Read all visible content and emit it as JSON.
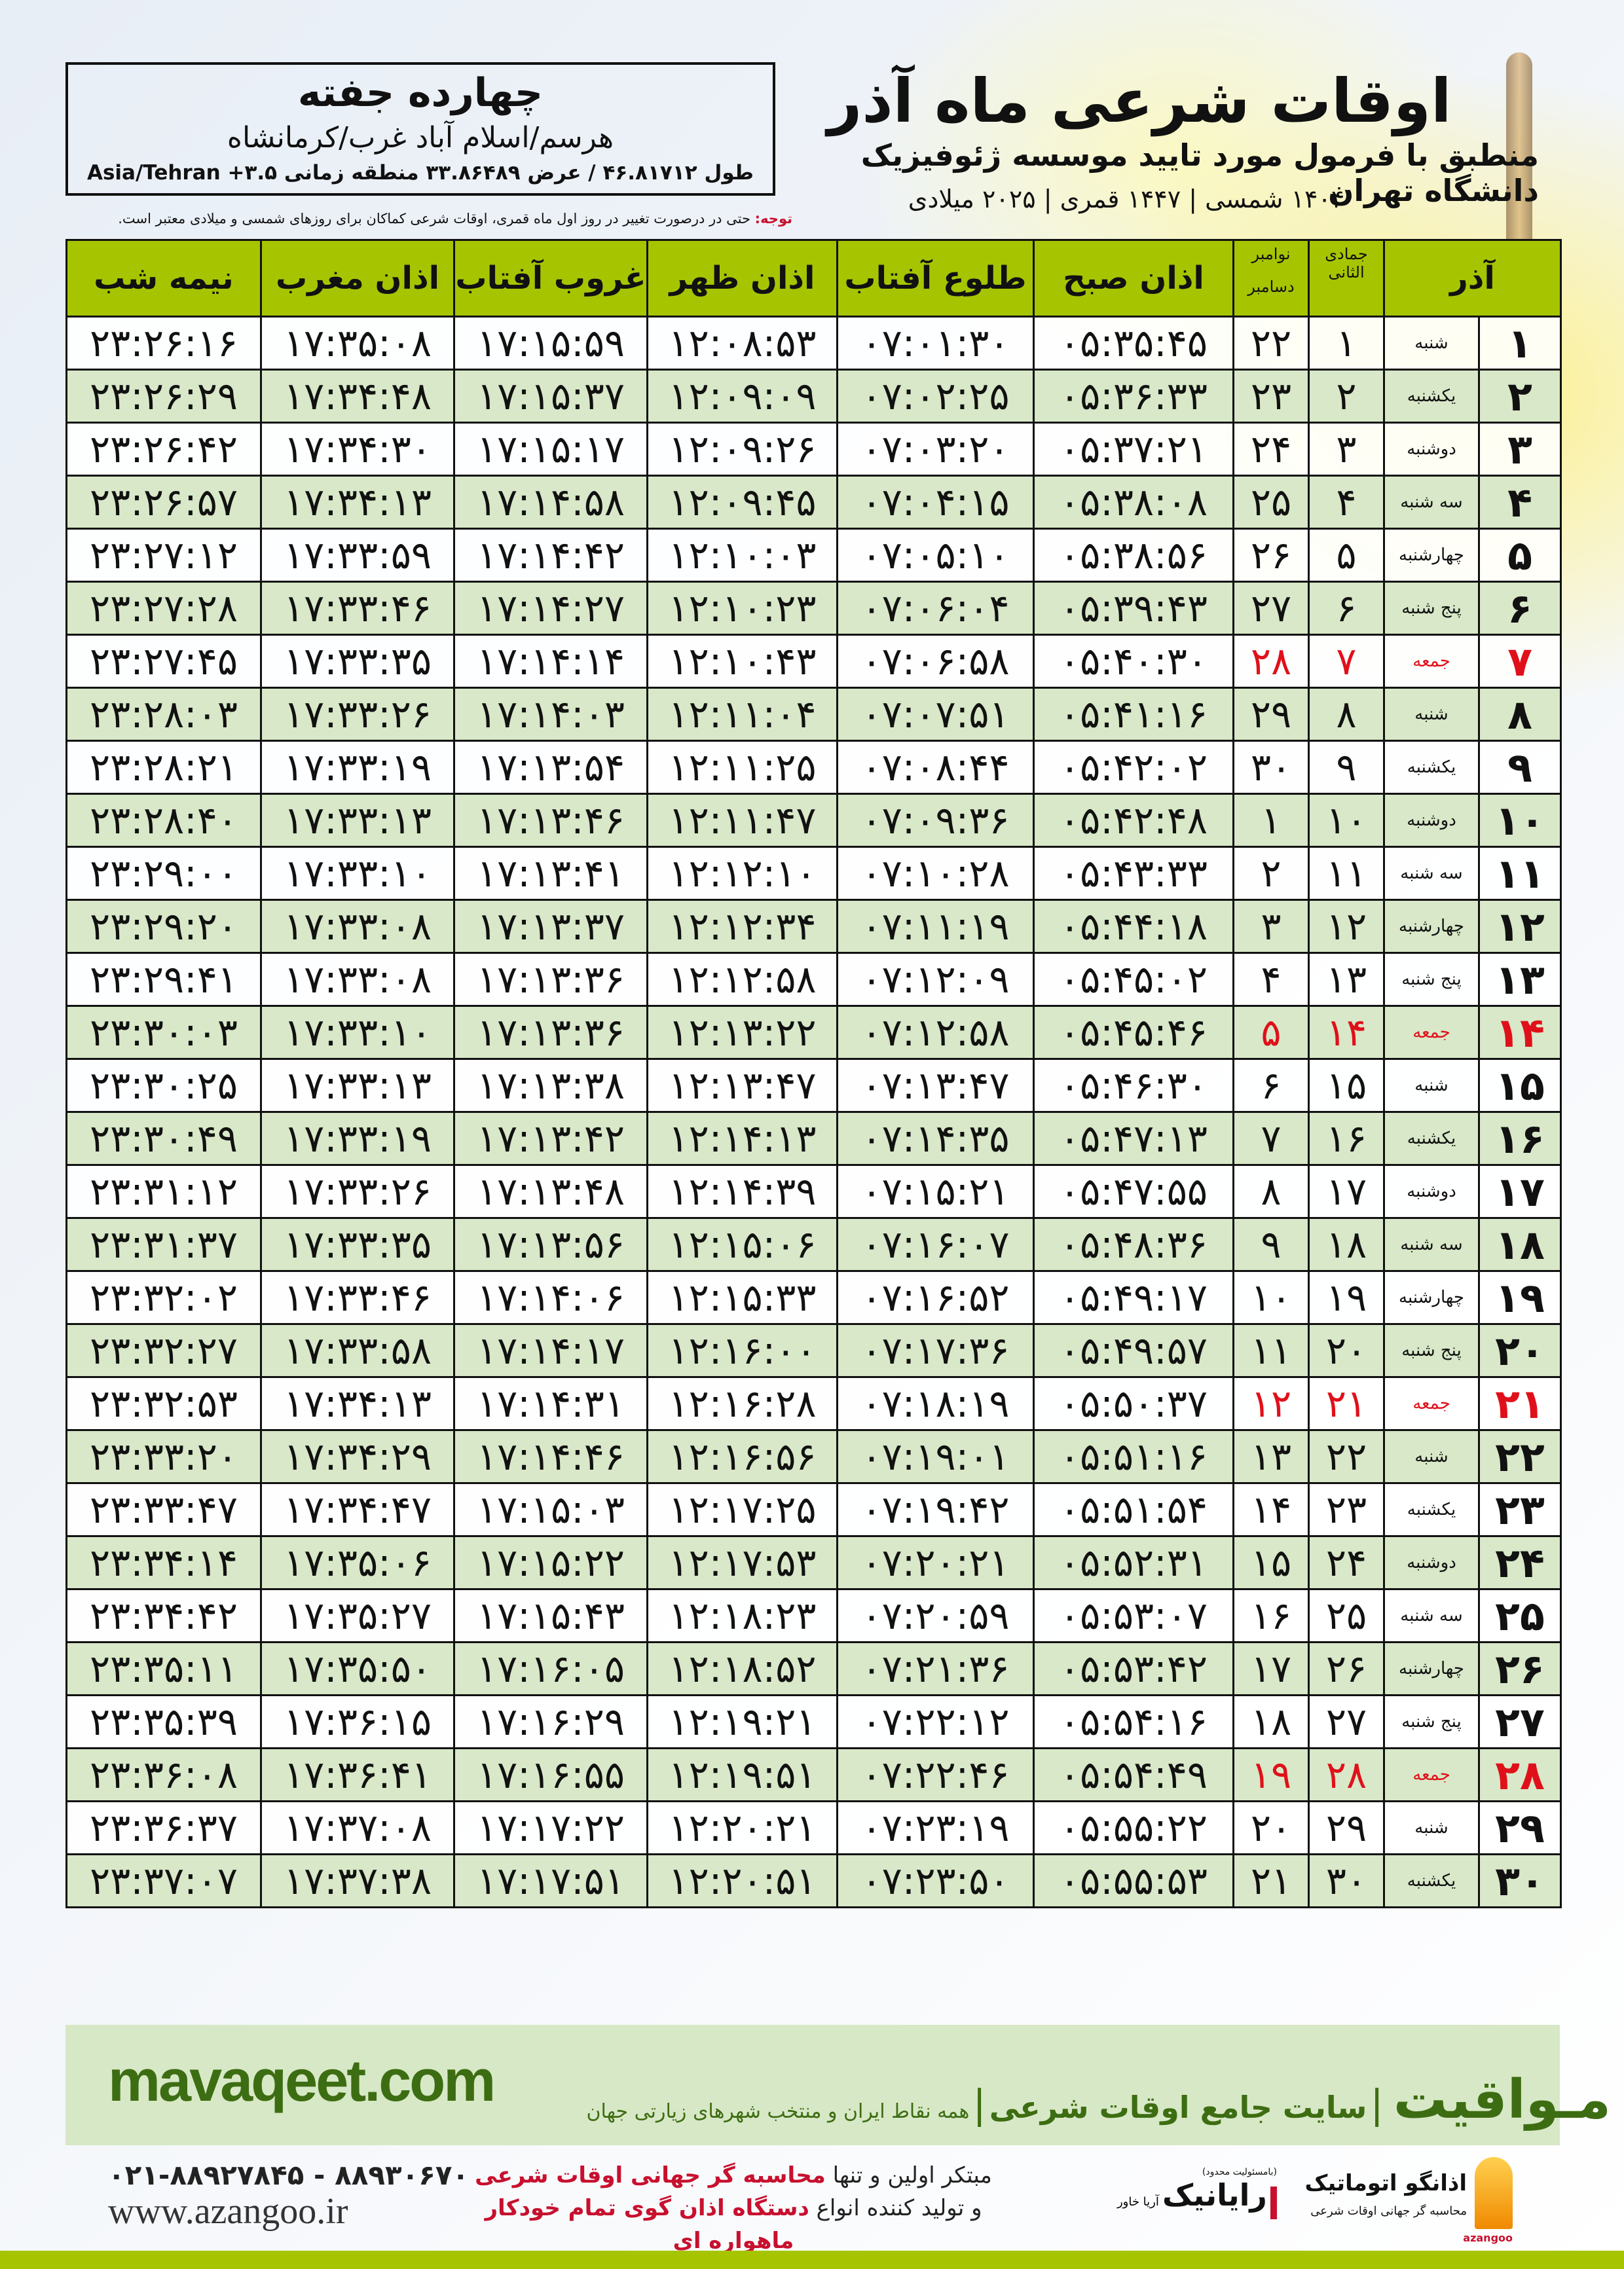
{
  "header": {
    "title": "اوقات شرعی ماه آذر",
    "subtitle": "منطبق با فرمول مورد تایید موسسه ژئوفیزیک دانشگاه تهران",
    "years": "۱۴۰۴ شمسی | ۱۴۴۷ قمری | ۲۰۲۵ میلادی"
  },
  "location": {
    "name": "چهارده جفته",
    "region": "هرسم/اسلام آباد غرب/کرمانشاه",
    "coords": "طول ۴۶.۸۱۷۱۲ / عرض ۳۳.۸۶۴۸۹ منطقه زمانی ۳.۵+ Asia/Tehran"
  },
  "note": {
    "label": "توجه:",
    "text": " حتی در درصورت تغییر در روز اول ماه قمری، اوقات شرعی کماکان برای روزهای شمسی و میلادی معتبر است."
  },
  "colors": {
    "header_green": "#a6c500",
    "row_green": "#d8e8c8",
    "holiday_red": "#e0101a",
    "brand_green": "#3d6d12"
  },
  "table": {
    "headers": {
      "month": "آذر",
      "hijri": "جمادی الثانی",
      "greg_top": "نوامبر",
      "greg_bottom": "دسامبر",
      "sobh": "اذان صبح",
      "tolu": "طلوع آفتاب",
      "zohr": "اذان ظهر",
      "ghorub": "غروب آفتاب",
      "maghreb": "اذان مغرب",
      "nimeh": "نیمه شب"
    },
    "rows": [
      {
        "day": "۱",
        "weekday": "شنبه",
        "hijri": "۱",
        "greg": "۲۲",
        "sobh": "۰۵:۳۵:۴۵",
        "tolu": "۰۷:۰۱:۳۰",
        "zohr": "۱۲:۰۸:۵۳",
        "ghorub": "۱۷:۱۵:۵۹",
        "maghreb": "۱۷:۳۵:۰۸",
        "nimeh": "۲۳:۲۶:۱۶",
        "holiday": false
      },
      {
        "day": "۲",
        "weekday": "یکشنبه",
        "hijri": "۲",
        "greg": "۲۳",
        "sobh": "۰۵:۳۶:۳۳",
        "tolu": "۰۷:۰۲:۲۵",
        "zohr": "۱۲:۰۹:۰۹",
        "ghorub": "۱۷:۱۵:۳۷",
        "maghreb": "۱۷:۳۴:۴۸",
        "nimeh": "۲۳:۲۶:۲۹",
        "holiday": false
      },
      {
        "day": "۳",
        "weekday": "دوشنبه",
        "hijri": "۳",
        "greg": "۲۴",
        "sobh": "۰۵:۳۷:۲۱",
        "tolu": "۰۷:۰۳:۲۰",
        "zohr": "۱۲:۰۹:۲۶",
        "ghorub": "۱۷:۱۵:۱۷",
        "maghreb": "۱۷:۳۴:۳۰",
        "nimeh": "۲۳:۲۶:۴۲",
        "holiday": false
      },
      {
        "day": "۴",
        "weekday": "سه شنبه",
        "hijri": "۴",
        "greg": "۲۵",
        "sobh": "۰۵:۳۸:۰۸",
        "tolu": "۰۷:۰۴:۱۵",
        "zohr": "۱۲:۰۹:۴۵",
        "ghorub": "۱۷:۱۴:۵۸",
        "maghreb": "۱۷:۳۴:۱۳",
        "nimeh": "۲۳:۲۶:۵۷",
        "holiday": false
      },
      {
        "day": "۵",
        "weekday": "چهارشنبه",
        "hijri": "۵",
        "greg": "۲۶",
        "sobh": "۰۵:۳۸:۵۶",
        "tolu": "۰۷:۰۵:۱۰",
        "zohr": "۱۲:۱۰:۰۳",
        "ghorub": "۱۷:۱۴:۴۲",
        "maghreb": "۱۷:۳۳:۵۹",
        "nimeh": "۲۳:۲۷:۱۲",
        "holiday": false
      },
      {
        "day": "۶",
        "weekday": "پنج شنبه",
        "hijri": "۶",
        "greg": "۲۷",
        "sobh": "۰۵:۳۹:۴۳",
        "tolu": "۰۷:۰۶:۰۴",
        "zohr": "۱۲:۱۰:۲۳",
        "ghorub": "۱۷:۱۴:۲۷",
        "maghreb": "۱۷:۳۳:۴۶",
        "nimeh": "۲۳:۲۷:۲۸",
        "holiday": false
      },
      {
        "day": "۷",
        "weekday": "جمعه",
        "hijri": "۷",
        "greg": "۲۸",
        "sobh": "۰۵:۴۰:۳۰",
        "tolu": "۰۷:۰۶:۵۸",
        "zohr": "۱۲:۱۰:۴۳",
        "ghorub": "۱۷:۱۴:۱۴",
        "maghreb": "۱۷:۳۳:۳۵",
        "nimeh": "۲۳:۲۷:۴۵",
        "holiday": true
      },
      {
        "day": "۸",
        "weekday": "شنبه",
        "hijri": "۸",
        "greg": "۲۹",
        "sobh": "۰۵:۴۱:۱۶",
        "tolu": "۰۷:۰۷:۵۱",
        "zohr": "۱۲:۱۱:۰۴",
        "ghorub": "۱۷:۱۴:۰۳",
        "maghreb": "۱۷:۳۳:۲۶",
        "nimeh": "۲۳:۲۸:۰۳",
        "holiday": false
      },
      {
        "day": "۹",
        "weekday": "یکشنبه",
        "hijri": "۹",
        "greg": "۳۰",
        "sobh": "۰۵:۴۲:۰۲",
        "tolu": "۰۷:۰۸:۴۴",
        "zohr": "۱۲:۱۱:۲۵",
        "ghorub": "۱۷:۱۳:۵۴",
        "maghreb": "۱۷:۳۳:۱۹",
        "nimeh": "۲۳:۲۸:۲۱",
        "holiday": false
      },
      {
        "day": "۱۰",
        "weekday": "دوشنبه",
        "hijri": "۱۰",
        "greg": "۱",
        "sobh": "۰۵:۴۲:۴۸",
        "tolu": "۰۷:۰۹:۳۶",
        "zohr": "۱۲:۱۱:۴۷",
        "ghorub": "۱۷:۱۳:۴۶",
        "maghreb": "۱۷:۳۳:۱۳",
        "nimeh": "۲۳:۲۸:۴۰",
        "holiday": false
      },
      {
        "day": "۱۱",
        "weekday": "سه شنبه",
        "hijri": "۱۱",
        "greg": "۲",
        "sobh": "۰۵:۴۳:۳۳",
        "tolu": "۰۷:۱۰:۲۸",
        "zohr": "۱۲:۱۲:۱۰",
        "ghorub": "۱۷:۱۳:۴۱",
        "maghreb": "۱۷:۳۳:۱۰",
        "nimeh": "۲۳:۲۹:۰۰",
        "holiday": false
      },
      {
        "day": "۱۲",
        "weekday": "چهارشنبه",
        "hijri": "۱۲",
        "greg": "۳",
        "sobh": "۰۵:۴۴:۱۸",
        "tolu": "۰۷:۱۱:۱۹",
        "zohr": "۱۲:۱۲:۳۴",
        "ghorub": "۱۷:۱۳:۳۷",
        "maghreb": "۱۷:۳۳:۰۸",
        "nimeh": "۲۳:۲۹:۲۰",
        "holiday": false
      },
      {
        "day": "۱۳",
        "weekday": "پنج شنبه",
        "hijri": "۱۳",
        "greg": "۴",
        "sobh": "۰۵:۴۵:۰۲",
        "tolu": "۰۷:۱۲:۰۹",
        "zohr": "۱۲:۱۲:۵۸",
        "ghorub": "۱۷:۱۳:۳۶",
        "maghreb": "۱۷:۳۳:۰۸",
        "nimeh": "۲۳:۲۹:۴۱",
        "holiday": false
      },
      {
        "day": "۱۴",
        "weekday": "جمعه",
        "hijri": "۱۴",
        "greg": "۵",
        "sobh": "۰۵:۴۵:۴۶",
        "tolu": "۰۷:۱۲:۵۸",
        "zohr": "۱۲:۱۳:۲۲",
        "ghorub": "۱۷:۱۳:۳۶",
        "maghreb": "۱۷:۳۳:۱۰",
        "nimeh": "۲۳:۳۰:۰۳",
        "holiday": true
      },
      {
        "day": "۱۵",
        "weekday": "شنبه",
        "hijri": "۱۵",
        "greg": "۶",
        "sobh": "۰۵:۴۶:۳۰",
        "tolu": "۰۷:۱۳:۴۷",
        "zohr": "۱۲:۱۳:۴۷",
        "ghorub": "۱۷:۱۳:۳۸",
        "maghreb": "۱۷:۳۳:۱۳",
        "nimeh": "۲۳:۳۰:۲۵",
        "holiday": false
      },
      {
        "day": "۱۶",
        "weekday": "یکشنبه",
        "hijri": "۱۶",
        "greg": "۷",
        "sobh": "۰۵:۴۷:۱۳",
        "tolu": "۰۷:۱۴:۳۵",
        "zohr": "۱۲:۱۴:۱۳",
        "ghorub": "۱۷:۱۳:۴۲",
        "maghreb": "۱۷:۳۳:۱۹",
        "nimeh": "۲۳:۳۰:۴۹",
        "holiday": false
      },
      {
        "day": "۱۷",
        "weekday": "دوشنبه",
        "hijri": "۱۷",
        "greg": "۸",
        "sobh": "۰۵:۴۷:۵۵",
        "tolu": "۰۷:۱۵:۲۱",
        "zohr": "۱۲:۱۴:۳۹",
        "ghorub": "۱۷:۱۳:۴۸",
        "maghreb": "۱۷:۳۳:۲۶",
        "nimeh": "۲۳:۳۱:۱۲",
        "holiday": false
      },
      {
        "day": "۱۸",
        "weekday": "سه شنبه",
        "hijri": "۱۸",
        "greg": "۹",
        "sobh": "۰۵:۴۸:۳۶",
        "tolu": "۰۷:۱۶:۰۷",
        "zohr": "۱۲:۱۵:۰۶",
        "ghorub": "۱۷:۱۳:۵۶",
        "maghreb": "۱۷:۳۳:۳۵",
        "nimeh": "۲۳:۳۱:۳۷",
        "holiday": false
      },
      {
        "day": "۱۹",
        "weekday": "چهارشنبه",
        "hijri": "۱۹",
        "greg": "۱۰",
        "sobh": "۰۵:۴۹:۱۷",
        "tolu": "۰۷:۱۶:۵۲",
        "zohr": "۱۲:۱۵:۳۳",
        "ghorub": "۱۷:۱۴:۰۶",
        "maghreb": "۱۷:۳۳:۴۶",
        "nimeh": "۲۳:۳۲:۰۲",
        "holiday": false
      },
      {
        "day": "۲۰",
        "weekday": "پنج شنبه",
        "hijri": "۲۰",
        "greg": "۱۱",
        "sobh": "۰۵:۴۹:۵۷",
        "tolu": "۰۷:۱۷:۳۶",
        "zohr": "۱۲:۱۶:۰۰",
        "ghorub": "۱۷:۱۴:۱۷",
        "maghreb": "۱۷:۳۳:۵۸",
        "nimeh": "۲۳:۳۲:۲۷",
        "holiday": false
      },
      {
        "day": "۲۱",
        "weekday": "جمعه",
        "hijri": "۲۱",
        "greg": "۱۲",
        "sobh": "۰۵:۵۰:۳۷",
        "tolu": "۰۷:۱۸:۱۹",
        "zohr": "۱۲:۱۶:۲۸",
        "ghorub": "۱۷:۱۴:۳۱",
        "maghreb": "۱۷:۳۴:۱۳",
        "nimeh": "۲۳:۳۲:۵۳",
        "holiday": true
      },
      {
        "day": "۲۲",
        "weekday": "شنبه",
        "hijri": "۲۲",
        "greg": "۱۳",
        "sobh": "۰۵:۵۱:۱۶",
        "tolu": "۰۷:۱۹:۰۱",
        "zohr": "۱۲:۱۶:۵۶",
        "ghorub": "۱۷:۱۴:۴۶",
        "maghreb": "۱۷:۳۴:۲۹",
        "nimeh": "۲۳:۳۳:۲۰",
        "holiday": false
      },
      {
        "day": "۲۳",
        "weekday": "یکشنبه",
        "hijri": "۲۳",
        "greg": "۱۴",
        "sobh": "۰۵:۵۱:۵۴",
        "tolu": "۰۷:۱۹:۴۲",
        "zohr": "۱۲:۱۷:۲۵",
        "ghorub": "۱۷:۱۵:۰۳",
        "maghreb": "۱۷:۳۴:۴۷",
        "nimeh": "۲۳:۳۳:۴۷",
        "holiday": false
      },
      {
        "day": "۲۴",
        "weekday": "دوشنبه",
        "hijri": "۲۴",
        "greg": "۱۵",
        "sobh": "۰۵:۵۲:۳۱",
        "tolu": "۰۷:۲۰:۲۱",
        "zohr": "۱۲:۱۷:۵۳",
        "ghorub": "۱۷:۱۵:۲۲",
        "maghreb": "۱۷:۳۵:۰۶",
        "nimeh": "۲۳:۳۴:۱۴",
        "holiday": false
      },
      {
        "day": "۲۵",
        "weekday": "سه شنبه",
        "hijri": "۲۵",
        "greg": "۱۶",
        "sobh": "۰۵:۵۳:۰۷",
        "tolu": "۰۷:۲۰:۵۹",
        "zohr": "۱۲:۱۸:۲۳",
        "ghorub": "۱۷:۱۵:۴۳",
        "maghreb": "۱۷:۳۵:۲۷",
        "nimeh": "۲۳:۳۴:۴۲",
        "holiday": false
      },
      {
        "day": "۲۶",
        "weekday": "چهارشنبه",
        "hijri": "۲۶",
        "greg": "۱۷",
        "sobh": "۰۵:۵۳:۴۲",
        "tolu": "۰۷:۲۱:۳۶",
        "zohr": "۱۲:۱۸:۵۲",
        "ghorub": "۱۷:۱۶:۰۵",
        "maghreb": "۱۷:۳۵:۵۰",
        "nimeh": "۲۳:۳۵:۱۱",
        "holiday": false
      },
      {
        "day": "۲۷",
        "weekday": "پنج شنبه",
        "hijri": "۲۷",
        "greg": "۱۸",
        "sobh": "۰۵:۵۴:۱۶",
        "tolu": "۰۷:۲۲:۱۲",
        "zohr": "۱۲:۱۹:۲۱",
        "ghorub": "۱۷:۱۶:۲۹",
        "maghreb": "۱۷:۳۶:۱۵",
        "nimeh": "۲۳:۳۵:۳۹",
        "holiday": false
      },
      {
        "day": "۲۸",
        "weekday": "جمعه",
        "hijri": "۲۸",
        "greg": "۱۹",
        "sobh": "۰۵:۵۴:۴۹",
        "tolu": "۰۷:۲۲:۴۶",
        "zohr": "۱۲:۱۹:۵۱",
        "ghorub": "۱۷:۱۶:۵۵",
        "maghreb": "۱۷:۳۶:۴۱",
        "nimeh": "۲۳:۳۶:۰۸",
        "holiday": true
      },
      {
        "day": "۲۹",
        "weekday": "شنبه",
        "hijri": "۲۹",
        "greg": "۲۰",
        "sobh": "۰۵:۵۵:۲۲",
        "tolu": "۰۷:۲۳:۱۹",
        "zohr": "۱۲:۲۰:۲۱",
        "ghorub": "۱۷:۱۷:۲۲",
        "maghreb": "۱۷:۳۷:۰۸",
        "nimeh": "۲۳:۳۶:۳۷",
        "holiday": false
      },
      {
        "day": "۳۰",
        "weekday": "یکشنبه",
        "hijri": "۳۰",
        "greg": "۲۱",
        "sobh": "۰۵:۵۵:۵۳",
        "tolu": "۰۷:۲۳:۵۰",
        "zohr": "۱۲:۲۰:۵۱",
        "ghorub": "۱۷:۱۷:۵۱",
        "maghreb": "۱۷:۳۷:۳۸",
        "nimeh": "۲۳:۳۷:۰۷",
        "holiday": false
      }
    ]
  },
  "footer": {
    "site": "mavaqeet.com",
    "brand": "مـواقیت",
    "sep": "|",
    "slogan1": "سایت جامع اوقات شرعی",
    "slogan2": "همه نقاط ایران و منتخب شهرهای زیارتی جهان",
    "phones": "۰۲۱-۸۸۹۲۷۸۴۵ - ۸۸۹۳۰۶۷۰",
    "web": "www.azangoo.ir",
    "adv_line1_a": "مبتکر اولین و تنها ",
    "adv_line1_b": "محاسبه گر جهانی اوقات شرعی",
    "adv_line2_a": "و تولید کننده انواع ",
    "adv_line2_b": "دستگاه اذان گوی تمام خودکار ماهواره ای",
    "rayanik_small": "(بامسئولیت محدود)",
    "rayanik": "رایانیک",
    "rayanik_sub": "آریا خاور",
    "azangoo_name": "اذانگو اتوماتیک",
    "azangoo_tag": "محاسبه گر جهانی اوقات شرعی",
    "azangoo_en": "azangoo"
  }
}
